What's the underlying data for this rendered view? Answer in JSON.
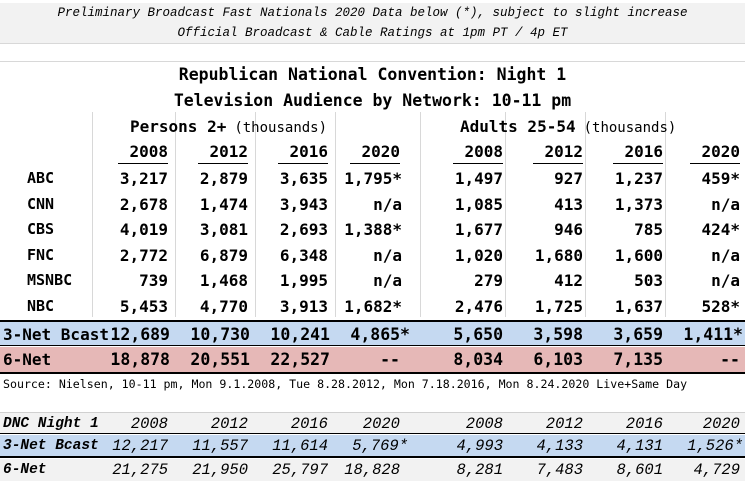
{
  "notes": {
    "line1": "Preliminary Broadcast Fast Nationals 2020 Data below (*), subject to slight increase",
    "line2": "Official Broadcast & Cable Ratings at 1pm PT / 4p ET"
  },
  "title": {
    "line1": "Republican National Convention: Night 1",
    "line2": "Television Audience by Network: 10-11 pm"
  },
  "groups": {
    "persons": {
      "label": "Persons 2+",
      "unit": "(thousands)"
    },
    "adults": {
      "label": "Adults 25-54",
      "unit": "(thousands)"
    }
  },
  "years": [
    "2008",
    "2012",
    "2016",
    "2020",
    "2008",
    "2012",
    "2016",
    "2020"
  ],
  "networks": [
    {
      "name": "ABC",
      "values": [
        "3,217",
        "2,879",
        "3,635",
        "1,795*",
        "1,497",
        "927",
        "1,237",
        "459*"
      ]
    },
    {
      "name": "CNN",
      "values": [
        "2,678",
        "1,474",
        "3,943",
        "n/a",
        "1,085",
        "413",
        "1,373",
        "n/a"
      ]
    },
    {
      "name": "CBS",
      "values": [
        "4,019",
        "3,081",
        "2,693",
        "1,388*",
        "1,677",
        "946",
        "785",
        "424*"
      ]
    },
    {
      "name": "FNC",
      "values": [
        "2,772",
        "6,879",
        "6,348",
        "n/a",
        "1,020",
        "1,680",
        "1,600",
        "n/a"
      ]
    },
    {
      "name": "MSNBC",
      "values": [
        "739",
        "1,468",
        "1,995",
        "n/a",
        "279",
        "412",
        "503",
        "n/a"
      ]
    },
    {
      "name": "NBC",
      "values": [
        "5,453",
        "4,770",
        "3,913",
        "1,682*",
        "2,476",
        "1,725",
        "1,637",
        "528*"
      ]
    }
  ],
  "totals": [
    {
      "name": "3-Net Bcast",
      "values": [
        "12,689",
        "10,730",
        "10,241",
        "4,865*",
        "5,650",
        "3,598",
        "3,659",
        "1,411*"
      ]
    },
    {
      "name": "6-Net",
      "values": [
        "18,878",
        "20,551",
        "22,527",
        "--",
        "8,034",
        "6,103",
        "7,135",
        "--"
      ]
    }
  ],
  "source": "Source: Nielsen, 10-11 pm, Mon 9.1.2008, Tue 8.28.2012, Mon 7.18.2016, Mon 8.24.2020 Live+Same Day",
  "dnc": {
    "label": "DNC Night 1",
    "years": [
      "2008",
      "2012",
      "2016",
      "2020",
      "2008",
      "2012",
      "2016",
      "2020"
    ],
    "rows": [
      {
        "name": "3-Net Bcast",
        "values": [
          "12,217",
          "11,557",
          "11,614",
          "5,769*",
          "4,993",
          "4,133",
          "4,131",
          "1,526*"
        ]
      },
      {
        "name": "6-Net",
        "values": [
          "21,275",
          "21,950",
          "25,797",
          "18,828",
          "8,281",
          "7,483",
          "8,601",
          "4,729"
        ]
      }
    ]
  },
  "colors": {
    "band_blue": "#c5d9f1",
    "band_red": "#e6b8b7",
    "note_bg": "#f2f2f2",
    "grid": "#d8d8d8"
  }
}
